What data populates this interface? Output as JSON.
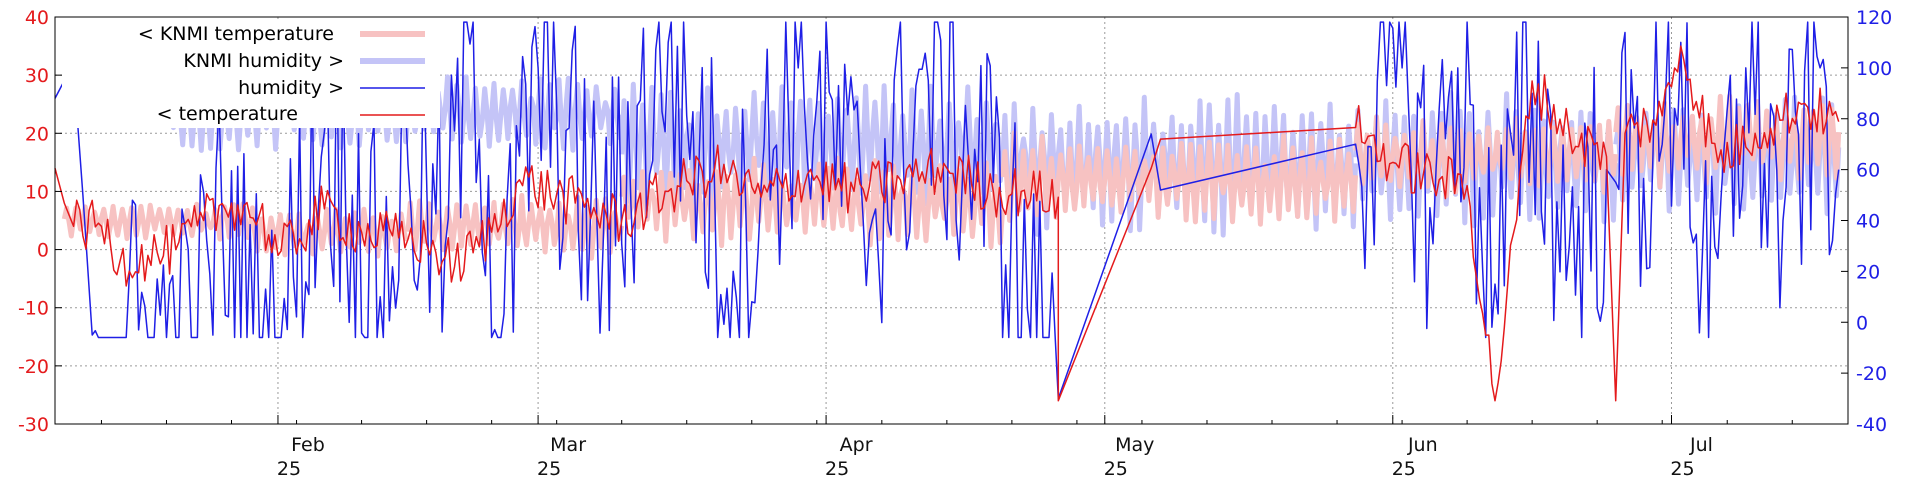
{
  "chart_data": {
    "type": "line",
    "title": "",
    "xlabel": "",
    "ylabel_left": "",
    "ylabel_right": "",
    "x_domain": [
      "2025-01-08",
      "2025-07-20"
    ],
    "y_left": {
      "range": [
        -30,
        40
      ],
      "ticks": [
        -30,
        -20,
        -10,
        0,
        10,
        20,
        30,
        40
      ],
      "color": "#e41a1c"
    },
    "y_right": {
      "range": [
        -40,
        120
      ],
      "ticks": [
        -40,
        -20,
        0,
        20,
        40,
        60,
        80,
        100,
        120
      ],
      "color": "#1f1fe6"
    },
    "x_ticks": [
      {
        "date": "2025-02-01",
        "month": "Feb",
        "year": "25"
      },
      {
        "date": "2025-03-01",
        "month": "Mar",
        "year": "25"
      },
      {
        "date": "2025-04-01",
        "month": "Apr",
        "year": "25"
      },
      {
        "date": "2025-05-01",
        "month": "May",
        "year": "25"
      },
      {
        "date": "2025-06-01",
        "month": "Jun",
        "year": "25"
      },
      {
        "date": "2025-07-01",
        "month": "Jul",
        "year": "25"
      }
    ],
    "grid": true,
    "legend_position": "top-left",
    "legend": [
      {
        "key": "knmi_temp",
        "label": "< KNMI temperature",
        "color": "#f7c2c2",
        "axis": "left"
      },
      {
        "key": "knmi_hum",
        "label": "KNMI humidity >",
        "color": "#c4c4f7",
        "axis": "right"
      },
      {
        "key": "hum",
        "label": "humidity >",
        "color": "#1f1fe6",
        "axis": "right"
      },
      {
        "key": "temp",
        "label": "< temperature",
        "color": "#e41a1c",
        "axis": "left"
      }
    ],
    "series": [
      {
        "key": "knmi_temp",
        "axis": "left",
        "segments": [
          {
            "start": "2025-01-09",
            "end": "2025-01-29",
            "base": 5,
            "amp": 3
          },
          {
            "start": "2025-01-29",
            "end": "2025-02-15",
            "base": 3,
            "amp": 4
          },
          {
            "start": "2025-02-15",
            "end": "2025-03-10",
            "base": 4,
            "amp": 5
          },
          {
            "start": "2025-03-10",
            "end": "2025-04-20",
            "base": 8,
            "amp": 7
          },
          {
            "start": "2025-04-20",
            "end": "2025-05-28",
            "base": 12,
            "amp": 7
          },
          {
            "start": "2025-05-28",
            "end": "2025-06-25",
            "base": 16,
            "amp": 6
          },
          {
            "start": "2025-06-25",
            "end": "2025-07-19",
            "base": 19,
            "amp": 7
          }
        ]
      },
      {
        "key": "knmi_hum",
        "axis": "right",
        "segments": [
          {
            "start": "2025-01-20",
            "end": "2025-03-10",
            "base": 82,
            "amp": 14
          },
          {
            "start": "2025-03-10",
            "end": "2025-04-20",
            "base": 70,
            "amp": 22
          },
          {
            "start": "2025-04-20",
            "end": "2025-05-28",
            "base": 62,
            "amp": 25
          },
          {
            "start": "2025-05-28",
            "end": "2025-06-25",
            "base": 64,
            "amp": 24
          },
          {
            "start": "2025-06-25",
            "end": "2025-07-19",
            "base": 66,
            "amp": 22
          }
        ]
      },
      {
        "key": "hum",
        "axis": "right",
        "points": [
          [
            "2025-01-08",
            88
          ],
          [
            "2025-01-09",
            95
          ],
          [
            "2025-01-10",
            100
          ],
          [
            "2025-01-11",
            50
          ],
          [
            "2025-01-12",
            -5
          ],
          [
            "2025-01-17",
            -3
          ],
          [
            "2025-01-23",
            -6
          ],
          [
            "2025-01-26",
            40
          ],
          [
            "2025-01-30",
            -6
          ],
          [
            "2025-02-01",
            -6
          ],
          [
            "2025-02-06",
            75
          ],
          [
            "2025-02-09",
            50
          ],
          [
            "2025-02-12",
            10
          ],
          [
            "2025-02-15",
            62
          ],
          [
            "2025-02-19",
            30
          ],
          [
            "2025-02-22",
            118
          ],
          [
            "2025-02-25",
            -6
          ],
          [
            "2025-03-01",
            100
          ],
          [
            "2025-03-08",
            30
          ],
          [
            "2025-03-15",
            110
          ],
          [
            "2025-03-22",
            20
          ],
          [
            "2025-03-29",
            100
          ],
          [
            "2025-04-05",
            40
          ],
          [
            "2025-04-12",
            95
          ],
          [
            "2025-04-19",
            55
          ],
          [
            "2025-04-26",
            -30
          ],
          [
            "2025-05-06",
            74
          ],
          [
            "2025-05-07",
            52
          ],
          [
            "2025-05-28",
            70
          ],
          [
            "2025-06-02",
            100
          ],
          [
            "2025-06-05",
            45
          ],
          [
            "2025-06-08",
            100
          ],
          [
            "2025-06-12",
            15
          ],
          [
            "2025-06-16",
            90
          ],
          [
            "2025-06-20",
            30
          ],
          [
            "2025-06-24",
            60
          ],
          [
            "2025-06-25",
            55
          ],
          [
            "2025-06-30",
            70
          ],
          [
            "2025-07-02",
            110
          ],
          [
            "2025-07-05",
            -6
          ],
          [
            "2025-07-09",
            100
          ],
          [
            "2025-07-13",
            40
          ],
          [
            "2025-07-17",
            100
          ],
          [
            "2025-07-19",
            60
          ]
        ]
      },
      {
        "key": "temp",
        "axis": "left",
        "points": [
          [
            "2025-01-08",
            14
          ],
          [
            "2025-01-09",
            8
          ],
          [
            "2025-01-10",
            4
          ],
          [
            "2025-01-13",
            4
          ],
          [
            "2025-01-15",
            -2
          ],
          [
            "2025-01-18",
            -1
          ],
          [
            "2025-01-21",
            0
          ],
          [
            "2025-01-24",
            5
          ],
          [
            "2025-01-27",
            8
          ],
          [
            "2025-01-30",
            6
          ],
          [
            "2025-02-01",
            -1
          ],
          [
            "2025-02-06",
            7
          ],
          [
            "2025-02-10",
            3
          ],
          [
            "2025-02-14",
            2
          ],
          [
            "2025-02-17",
            1
          ],
          [
            "2025-02-20",
            -3
          ],
          [
            "2025-02-24",
            3
          ],
          [
            "2025-02-27",
            12
          ],
          [
            "2025-03-05",
            8
          ],
          [
            "2025-03-10",
            5
          ],
          [
            "2025-03-15",
            10
          ],
          [
            "2025-03-20",
            14
          ],
          [
            "2025-03-25",
            9
          ],
          [
            "2025-03-30",
            13
          ],
          [
            "2025-04-04",
            10
          ],
          [
            "2025-04-09",
            12
          ],
          [
            "2025-04-14",
            14
          ],
          [
            "2025-04-19",
            10
          ],
          [
            "2025-04-22",
            10
          ],
          [
            "2025-04-26",
            9
          ],
          [
            "2025-04-26",
            -26
          ],
          [
            "2025-05-06",
            14
          ],
          [
            "2025-05-07",
            19
          ],
          [
            "2025-05-28",
            21
          ],
          [
            "2025-06-01",
            15
          ],
          [
            "2025-06-06",
            12
          ],
          [
            "2025-06-09",
            11
          ],
          [
            "2025-06-12",
            -26
          ],
          [
            "2025-06-16",
            29
          ],
          [
            "2025-06-20",
            20
          ],
          [
            "2025-06-24",
            16
          ],
          [
            "2025-06-25",
            -26
          ],
          [
            "2025-06-26",
            20
          ],
          [
            "2025-06-30",
            23
          ],
          [
            "2025-07-02",
            35
          ],
          [
            "2025-07-06",
            15
          ],
          [
            "2025-07-10",
            20
          ],
          [
            "2025-07-15",
            25
          ],
          [
            "2025-07-19",
            22
          ]
        ]
      }
    ]
  }
}
